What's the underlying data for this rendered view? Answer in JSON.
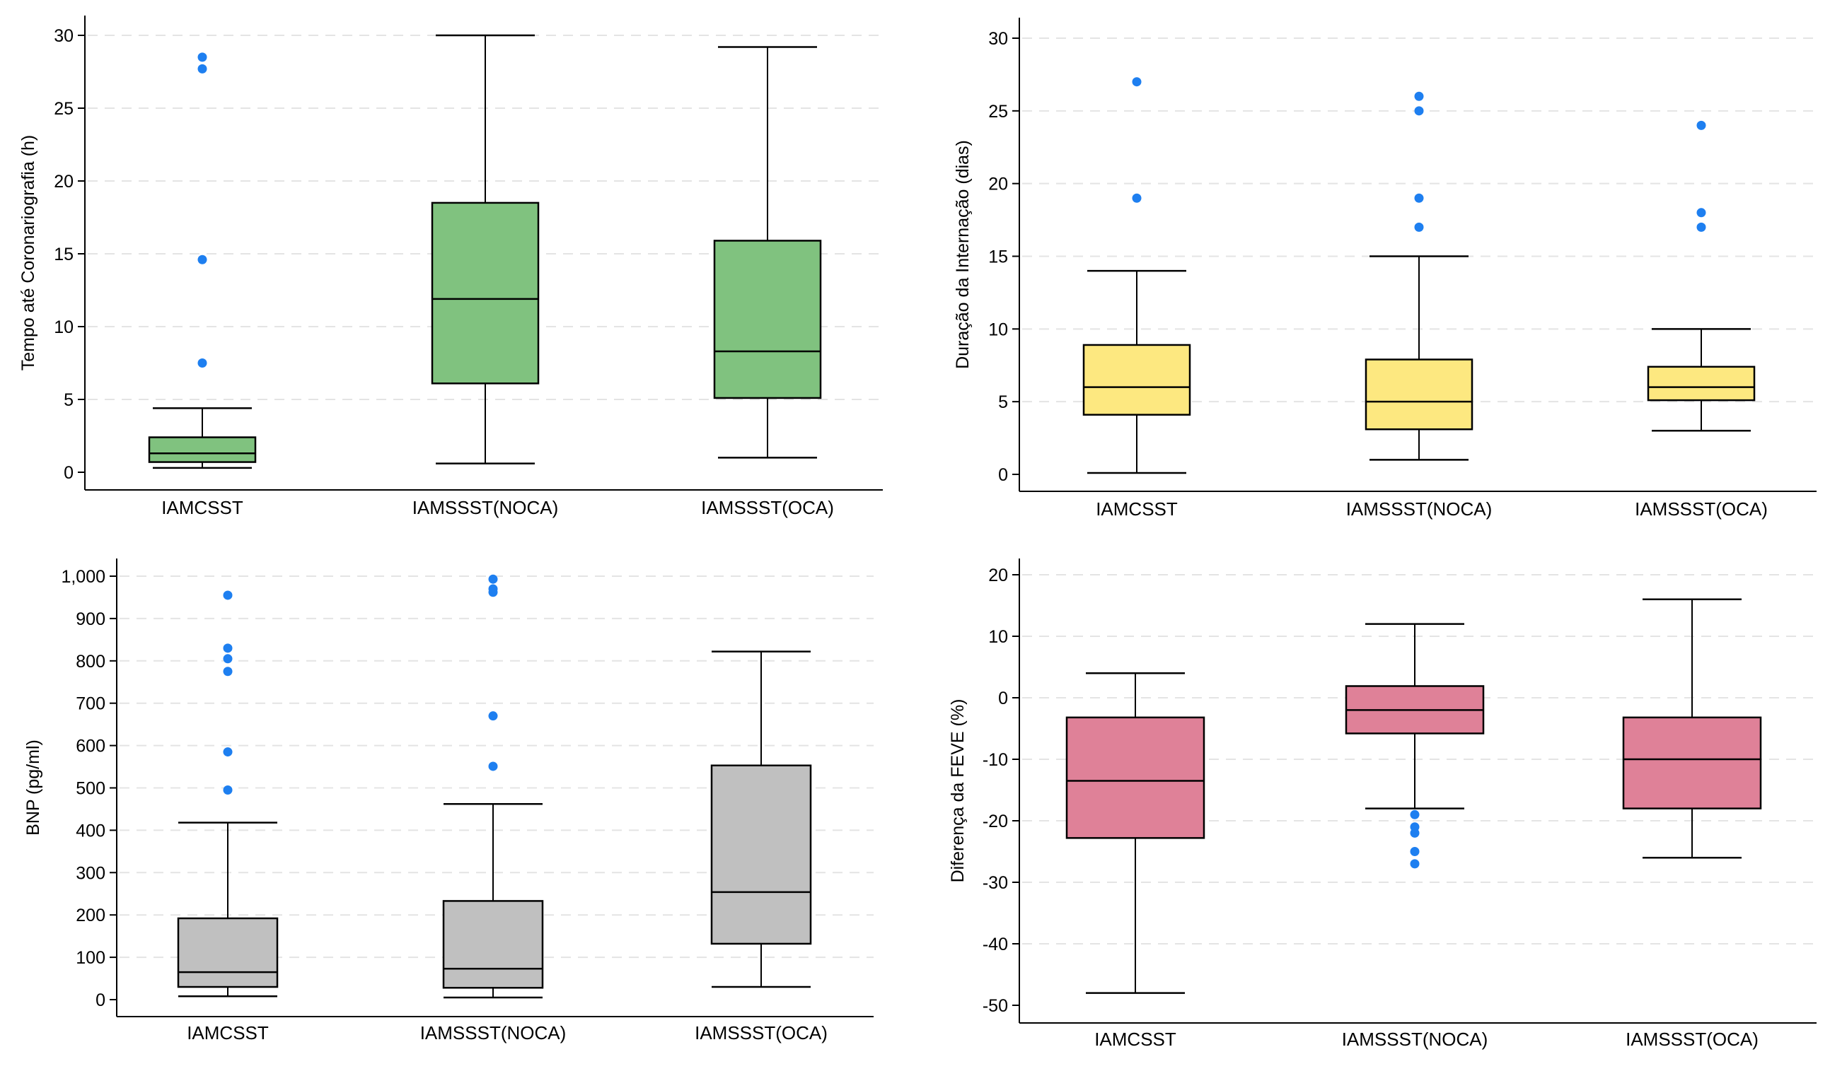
{
  "colors": {
    "outlier": "#1e7ff0",
    "gridline": "#e4e4e4",
    "axis": "#000000"
  },
  "chart_data": [
    {
      "type": "boxplot",
      "ylabel": "Tempo até Coronariografia (h)",
      "xlabel": "",
      "ylim": [
        0,
        30
      ],
      "yticks": [
        0,
        5,
        10,
        15,
        20,
        25,
        30
      ],
      "ytick_labels": [
        "0",
        "5",
        "10",
        "15",
        "20",
        "25",
        "30"
      ],
      "grid": "horizontal dashed",
      "fill_color": "#80c27f",
      "categories": [
        "IAMCSST",
        "IAMSSST(NOCA)",
        "IAMSSST(OCA)"
      ],
      "boxes": [
        {
          "min": 0.3,
          "q1": 0.7,
          "median": 1.3,
          "q3": 2.4,
          "max": 4.4,
          "outliers": [
            28.5,
            27.7,
            14.6,
            7.5
          ]
        },
        {
          "min": 0.6,
          "q1": 6.1,
          "median": 11.9,
          "q3": 18.5,
          "max": 30.0,
          "outliers": []
        },
        {
          "min": 1.0,
          "q1": 5.1,
          "median": 8.3,
          "q3": 15.9,
          "max": 29.2,
          "outliers": []
        }
      ]
    },
    {
      "type": "boxplot",
      "ylabel": "Duração da Internação (dias)",
      "xlabel": "",
      "ylim": [
        0,
        30
      ],
      "yticks": [
        0,
        5,
        10,
        15,
        20,
        25,
        30
      ],
      "ytick_labels": [
        "0",
        "5",
        "10",
        "15",
        "20",
        "25",
        "30"
      ],
      "grid": "horizontal dashed",
      "fill_color": "#fde880",
      "categories": [
        "IAMCSST",
        "IAMSSST(NOCA)",
        "IAMSSST(OCA)"
      ],
      "boxes": [
        {
          "min": 0.1,
          "q1": 4.1,
          "median": 6.0,
          "q3": 8.9,
          "max": 14.0,
          "outliers": [
            27,
            19
          ]
        },
        {
          "min": 1.0,
          "q1": 3.1,
          "median": 5.0,
          "q3": 7.9,
          "max": 15.0,
          "outliers": [
            26,
            25,
            19,
            17
          ]
        },
        {
          "min": 3.0,
          "q1": 5.1,
          "median": 6.0,
          "q3": 7.4,
          "max": 10.0,
          "outliers": [
            24,
            18,
            17
          ]
        }
      ]
    },
    {
      "type": "boxplot",
      "ylabel": "BNP (pg/ml)",
      "xlabel": "",
      "ylim": [
        0,
        1000
      ],
      "yticks": [
        0,
        100,
        200,
        300,
        400,
        500,
        600,
        700,
        800,
        900,
        1000
      ],
      "ytick_labels": [
        "0",
        "100",
        "200",
        "300",
        "400",
        "500",
        "600",
        "700",
        "800",
        "900",
        "1,000"
      ],
      "grid": "horizontal dashed",
      "fill_color": "#c0c0c0",
      "categories": [
        "IAMCSST",
        "IAMSSST(NOCA)",
        "IAMSSST(OCA)"
      ],
      "boxes": [
        {
          "min": 8,
          "q1": 30,
          "median": 65,
          "q3": 192,
          "max": 418,
          "outliers": [
            955,
            830,
            805,
            775,
            585,
            495
          ]
        },
        {
          "min": 5,
          "q1": 28,
          "median": 73,
          "q3": 233,
          "max": 462,
          "outliers": [
            993,
            970,
            962,
            670,
            551
          ]
        },
        {
          "min": 30,
          "q1": 132,
          "median": 254,
          "q3": 553,
          "max": 822,
          "outliers": []
        }
      ]
    },
    {
      "type": "boxplot",
      "ylabel": "Diferença da FEVE (%)",
      "xlabel": "",
      "ylim": [
        -50,
        20
      ],
      "yticks": [
        -50,
        -40,
        -30,
        -20,
        -10,
        0,
        10,
        20
      ],
      "ytick_labels": [
        "-50",
        "-40",
        "-30",
        "-20",
        "-10",
        "0",
        "10",
        "20"
      ],
      "grid": "horizontal dashed",
      "fill_color": "#df8198",
      "categories": [
        "IAMCSST",
        "IAMSSST(NOCA)",
        "IAMSSST(OCA)"
      ],
      "boxes": [
        {
          "min": -48,
          "q1": -22.8,
          "median": -13.5,
          "q3": -3.2,
          "max": 4.0,
          "outliers": []
        },
        {
          "min": -18,
          "q1": -5.8,
          "median": -2.0,
          "q3": 1.9,
          "max": 12.0,
          "outliers": [
            -19,
            -21,
            -22,
            -25,
            -27
          ]
        },
        {
          "min": -26,
          "q1": -18,
          "median": -10,
          "q3": -3.2,
          "max": 16.0,
          "outliers": []
        }
      ]
    }
  ]
}
